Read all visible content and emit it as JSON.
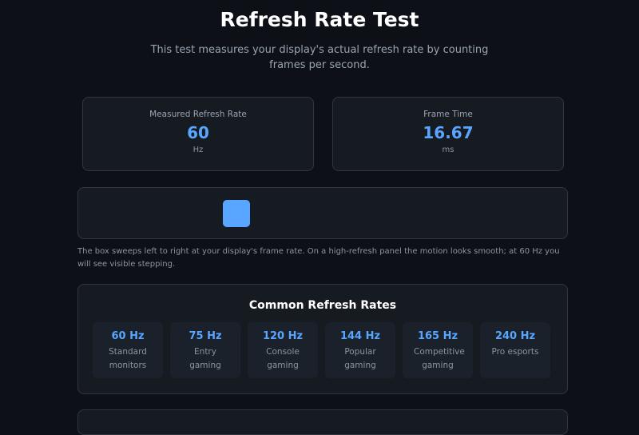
{
  "header": {
    "title": "Refresh Rate Test",
    "subtitle": "This test measures your display's actual refresh rate by counting frames per second."
  },
  "stats": [
    {
      "label": "Measured Refresh Rate",
      "value": "60",
      "unit": "Hz"
    },
    {
      "label": "Frame Time",
      "value": "16.67",
      "unit": "ms"
    }
  ],
  "note": "The box sweeps left to right at your display's frame rate. On a high-refresh panel the motion looks smooth; at 60 Hz you will see visible stepping.",
  "rates": {
    "title": "Common Refresh Rates",
    "items": [
      {
        "rate": "60 Hz",
        "description": "Standard monitors"
      },
      {
        "rate": "75 Hz",
        "description": "Entry gaming"
      },
      {
        "rate": "120 Hz",
        "description": "Console gaming"
      },
      {
        "rate": "144 Hz",
        "description": "Popular gaming"
      },
      {
        "rate": "165 Hz",
        "description": "Competitive gaming"
      },
      {
        "rate": "240 Hz",
        "description": "Pro esports"
      }
    ]
  }
}
